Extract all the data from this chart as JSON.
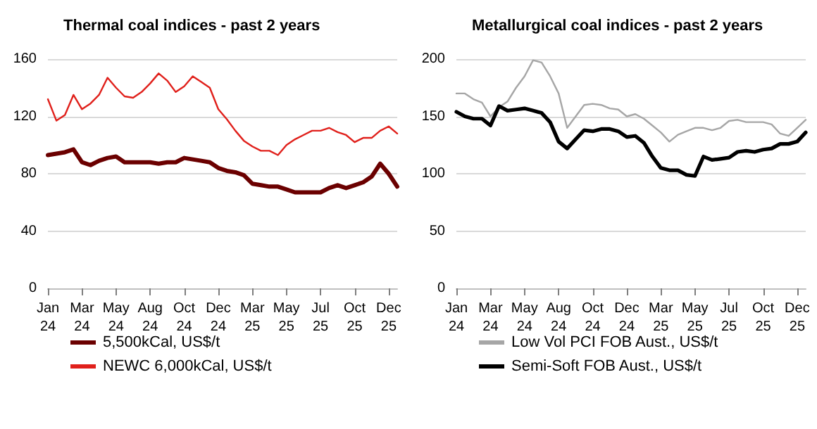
{
  "chart_data": [
    {
      "type": "line",
      "title": "Thermal coal indices - past 2 years",
      "categories": [
        "Jan\n24",
        null,
        null,
        null,
        "Mar\n24",
        null,
        null,
        null,
        "May\n24",
        null,
        null,
        null,
        "Aug\n24",
        null,
        null,
        null,
        "Oct\n24",
        null,
        null,
        null,
        "Dec\n24",
        null,
        null,
        null,
        "Mar\n25",
        null,
        null,
        null,
        "May\n25",
        null,
        null,
        null,
        "Jul\n25",
        null,
        null,
        null,
        "Oct\n25",
        null,
        null,
        null,
        "Dec\n25",
        null
      ],
      "series": [
        {
          "name": "5,500kCal, US$/t",
          "color": "#6b0000",
          "values": [
            93,
            94,
            95,
            97,
            88,
            86,
            89,
            91,
            92,
            88,
            88,
            88,
            88,
            87,
            88,
            88,
            91,
            90,
            89,
            88,
            84,
            82,
            81,
            79,
            73,
            72,
            71,
            71,
            69,
            67,
            67,
            67,
            67,
            70,
            72,
            70,
            72,
            74,
            78,
            87,
            80,
            71
          ]
        },
        {
          "name": "NEWC 6,000kCal, US$/t",
          "color": "#e0201b",
          "values": [
            132,
            117,
            121,
            135,
            125,
            129,
            135,
            147,
            140,
            134,
            133,
            137,
            143,
            150,
            145,
            137,
            141,
            148,
            144,
            140,
            125,
            118,
            110,
            103,
            99,
            96,
            96,
            93,
            100,
            104,
            107,
            110,
            110,
            112,
            109,
            107,
            102,
            105,
            105,
            110,
            113,
            108
          ]
        }
      ],
      "ylim": [
        0,
        160
      ],
      "yticks": [
        0,
        40,
        80,
        120,
        160
      ],
      "grid": "y",
      "legend": "bottom",
      "marker": "none"
    },
    {
      "type": "line",
      "title": "Metallurgical coal indices - past 2 years",
      "categories": [
        "Jan\n24",
        null,
        null,
        null,
        "Mar\n24",
        null,
        null,
        null,
        "May\n24",
        null,
        null,
        null,
        "Aug\n24",
        null,
        null,
        null,
        "Oct\n24",
        null,
        null,
        null,
        "Dec\n24",
        null,
        null,
        null,
        "Mar\n25",
        null,
        null,
        null,
        "May\n25",
        null,
        null,
        null,
        "Jul\n25",
        null,
        null,
        null,
        "Oct\n25",
        null,
        null,
        null,
        "Dec\n25",
        null
      ],
      "series": [
        {
          "name": "Low Vol PCI FOB Aust., US$/t",
          "color": "#a6a6a6",
          "values": [
            170,
            170,
            165,
            162,
            150,
            158,
            163,
            175,
            185,
            199,
            197,
            185,
            170,
            140,
            150,
            160,
            161,
            160,
            157,
            156,
            150,
            152,
            148,
            142,
            136,
            128,
            134,
            137,
            140,
            140,
            138,
            140,
            146,
            147,
            145,
            145,
            145,
            143,
            135,
            133,
            140,
            147
          ]
        },
        {
          "name": "Semi-Soft FOB Aust., US$/t",
          "color": "#000000",
          "values": [
            154,
            150,
            148,
            148,
            142,
            159,
            155,
            156,
            157,
            155,
            153,
            145,
            128,
            122,
            130,
            138,
            137,
            139,
            139,
            137,
            132,
            133,
            127,
            115,
            105,
            103,
            103,
            99,
            98,
            115,
            112,
            113,
            114,
            119,
            120,
            119,
            121,
            122,
            126,
            126,
            128,
            136
          ]
        }
      ],
      "ylim": [
        0,
        200
      ],
      "yticks": [
        0,
        50,
        100,
        150,
        200
      ],
      "grid": "y",
      "legend": "bottom",
      "marker": "none"
    }
  ]
}
